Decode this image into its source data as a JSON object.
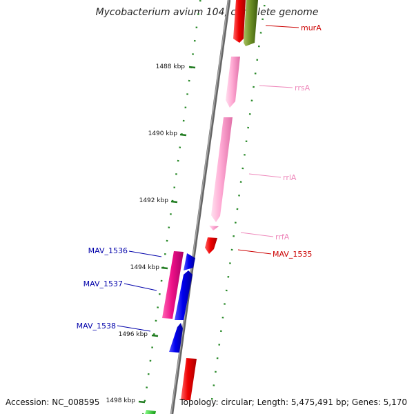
{
  "title": "Mycobacterium avium 104, complete genome",
  "accession": "Accession: NC_008595",
  "topology": "Topology: circular; Length: 5,475,491 bp; Genes: 5,170",
  "ticks": [
    "1488 kbp",
    "1490 kbp",
    "1492 kbp",
    "1494 kbp",
    "1496 kbp",
    "1498 kbp"
  ],
  "genes": [
    {
      "label": "murA",
      "color": "#cc0000"
    },
    {
      "label": "rrsA",
      "color": "#ee88bb"
    },
    {
      "label": "rrlA",
      "color": "#ee88bb"
    },
    {
      "label": "rrfA",
      "color": "#ee88bb"
    },
    {
      "label": "MAV_1535",
      "color": "#cc0000"
    },
    {
      "label": "MAV_1536",
      "color": "#0000aa"
    },
    {
      "label": "MAV_1537",
      "color": "#0000aa"
    },
    {
      "label": "MAV_1538",
      "color": "#0000aa"
    }
  ],
  "colors": {
    "backbone": "#8a8a8a",
    "tick_dots": "#2a8a2a",
    "red": "#ee0000",
    "olive": "#6b8e23",
    "pink_light": "#ffaad4",
    "magenta": "#ee1188",
    "blue": "#0000ee",
    "green": "#22cc22"
  }
}
